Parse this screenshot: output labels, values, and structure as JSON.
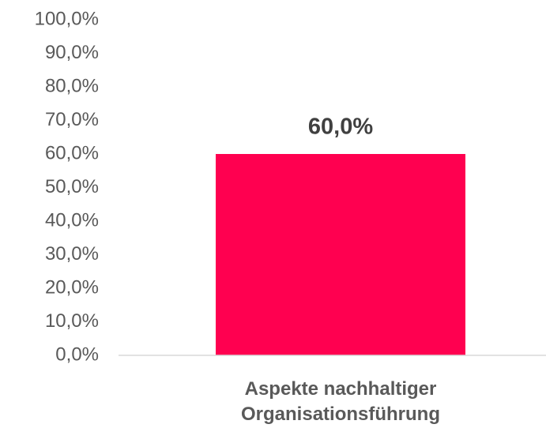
{
  "chart_data": {
    "type": "bar",
    "categories": [
      "Aspekte nachhaltiger Organisationsführung"
    ],
    "values": [
      60
    ],
    "value_labels": [
      "60,0%"
    ],
    "color": "#ff0050",
    "ylim": [
      0,
      100
    ],
    "yticks": [
      {
        "value": 0,
        "label": "0,0%"
      },
      {
        "value": 10,
        "label": "10,0%"
      },
      {
        "value": 20,
        "label": "20,0%"
      },
      {
        "value": 30,
        "label": "30,0%"
      },
      {
        "value": 40,
        "label": "40,0%"
      },
      {
        "value": 50,
        "label": "50,0%"
      },
      {
        "value": 60,
        "label": "60,0%"
      },
      {
        "value": 70,
        "label": "70,0%"
      },
      {
        "value": 80,
        "label": "80,0%"
      },
      {
        "value": 90,
        "label": "90,0%"
      },
      {
        "value": 100,
        "label": "100,0%"
      }
    ],
    "grid": false
  }
}
